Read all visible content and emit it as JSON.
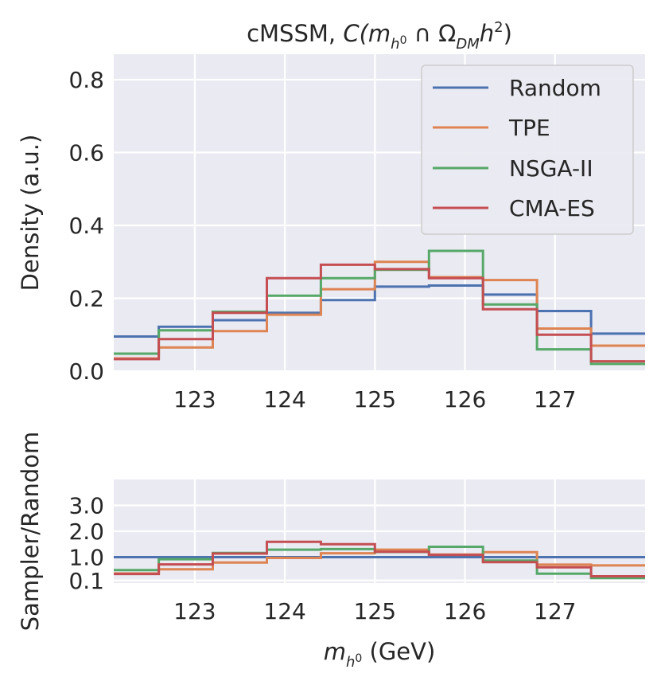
{
  "chart_data": [
    {
      "type": "line",
      "title_text": "cMSSM, ",
      "title_math": "C(m",
      "title_sub": "h",
      "title_sup": "0",
      "title_rest_1": " ∩ Ω",
      "title_rest_sub": "DM",
      "title_rest_2": "h",
      "title_rest_sup": "2",
      "title_close": ")",
      "ylabel": "Density (a.u.)",
      "xlim": [
        122.1,
        128.0
      ],
      "ylim": [
        0.0,
        0.87
      ],
      "xticks": [
        "123",
        "124",
        "125",
        "126",
        "127"
      ],
      "yticks": [
        "0.0",
        "0.2",
        "0.4",
        "0.6",
        "0.8"
      ],
      "ytick_values": [
        0.0,
        0.2,
        0.4,
        0.6,
        0.8
      ],
      "xtick_values": [
        123,
        124,
        125,
        126,
        127
      ],
      "bin_edges": [
        122.0,
        122.6,
        123.2,
        123.8,
        124.4,
        125.0,
        125.6,
        126.2,
        126.8,
        127.4,
        128.0
      ],
      "legend_position": "top-right",
      "series": [
        {
          "name": "Random",
          "color": "#4c72b0",
          "values": [
            0.095,
            0.122,
            0.14,
            0.16,
            0.195,
            0.232,
            0.235,
            0.21,
            0.165,
            0.103
          ]
        },
        {
          "name": "TPE",
          "color": "#dd8452",
          "values": [
            0.035,
            0.065,
            0.11,
            0.155,
            0.225,
            0.3,
            0.258,
            0.25,
            0.117,
            0.07
          ]
        },
        {
          "name": "NSGA-II",
          "color": "#55a868",
          "values": [
            0.048,
            0.112,
            0.163,
            0.207,
            0.255,
            0.278,
            0.33,
            0.183,
            0.06,
            0.02
          ]
        },
        {
          "name": "CMA-ES",
          "color": "#c44e52",
          "values": [
            0.033,
            0.088,
            0.16,
            0.255,
            0.292,
            0.28,
            0.255,
            0.17,
            0.1,
            0.027
          ]
        }
      ]
    },
    {
      "type": "line",
      "ylabel": "Sampler/Random",
      "xlabel_math": "m",
      "xlabel_sub": "h",
      "xlabel_sup": "0",
      "xlabel_unit": " (GeV)",
      "xlim": [
        122.1,
        128.0
      ],
      "ylim": [
        0.0,
        4.0
      ],
      "xticks": [
        "123",
        "124",
        "125",
        "126",
        "127"
      ],
      "xtick_values": [
        123,
        124,
        125,
        126,
        127
      ],
      "yticks": [
        "0.1",
        "1.0",
        "2.0",
        "3.0"
      ],
      "ytick_values": [
        0.1,
        1.0,
        2.0,
        3.0
      ],
      "bin_edges": [
        122.0,
        122.6,
        123.2,
        123.8,
        124.4,
        125.0,
        125.6,
        126.2,
        126.8,
        127.4,
        128.0
      ],
      "series": [
        {
          "name": "Random",
          "color": "#4c72b0",
          "values": [
            1.0,
            1.0,
            1.0,
            1.0,
            1.0,
            1.0,
            1.0,
            1.0,
            1.0,
            1.0
          ]
        },
        {
          "name": "TPE",
          "color": "#dd8452",
          "values": [
            0.37,
            0.53,
            0.79,
            0.97,
            1.15,
            1.29,
            1.1,
            1.19,
            0.71,
            0.68
          ]
        },
        {
          "name": "NSGA-II",
          "color": "#55a868",
          "values": [
            0.5,
            0.92,
            1.16,
            1.29,
            1.31,
            1.2,
            1.4,
            0.87,
            0.36,
            0.19
          ]
        },
        {
          "name": "CMA-ES",
          "color": "#c44e52",
          "values": [
            0.35,
            0.72,
            1.14,
            1.59,
            1.5,
            1.21,
            1.09,
            0.81,
            0.61,
            0.26
          ]
        }
      ]
    }
  ]
}
